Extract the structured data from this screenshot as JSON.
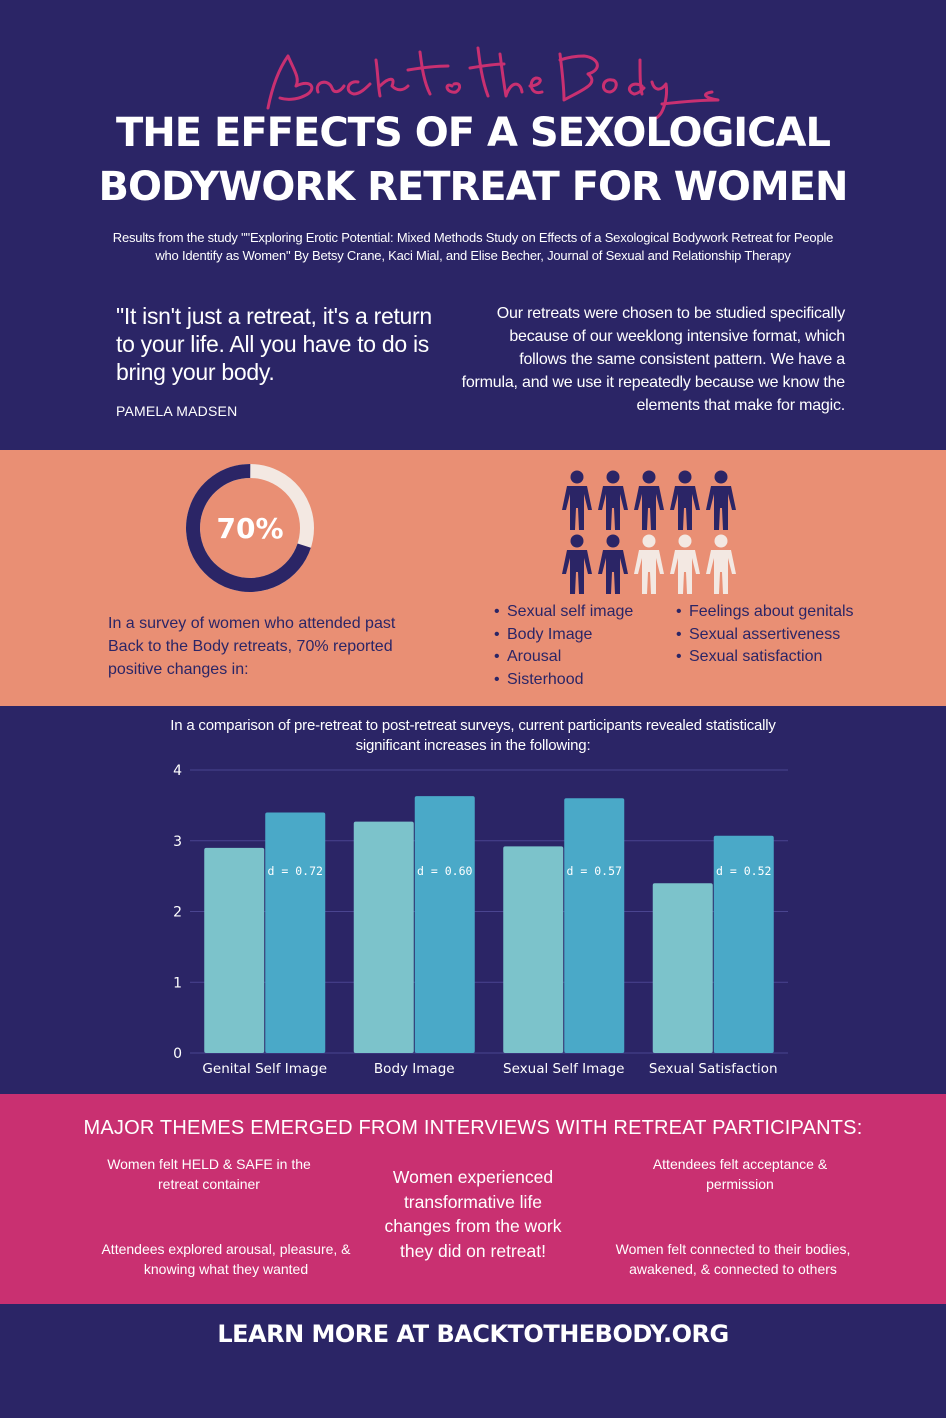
{
  "header": {
    "brand_script": "Back to the Body",
    "title_line1": "THE EFFECTS OF A SEXOLOGICAL",
    "title_line2": "BODYWORK RETREAT FOR WOMEN",
    "subtitle_line1": "Results from the study \"\"Exploring Erotic Potential: Mixed Methods Study on Effects of a Sexological Bodywork Retreat for People",
    "subtitle_line2": "who Identify as Women\" By Betsy Crane, Kaci Mial, and Elise Becher, Journal of Sexual and Relationship Therapy"
  },
  "quote": {
    "text": "\"It isn't just a retreat, it's a return to your life. All you have to do is bring your body.",
    "author": "PAMELA MADSEN"
  },
  "intro": {
    "text": "Our retreats were chosen to be studied specifically because of our weeklong intensive format, which follows the same consistent pattern. We have a formula, and we use it repeatedly because we know the elements that make for magic."
  },
  "survey": {
    "percent_label": "70%",
    "percent_value": 70,
    "people_total": 10,
    "people_highlighted": 7,
    "description": "In a survey of women who attended past Back to the Body retreats, 70% reported positive changes in:",
    "bullets_left": [
      "Sexual self image",
      "Body Image",
      "Arousal",
      "Sisterhood"
    ],
    "bullets_right": [
      "Feelings about genitals",
      "Sexual assertiveness",
      "Sexual satisfaction"
    ]
  },
  "chart_caption": "In a comparison of pre-retreat to post-retreat surveys, current participants revealed statistically significant increases in the following:",
  "chart_data": {
    "type": "bar",
    "categories": [
      "Genital Self Image",
      "Body Image",
      "Sexual Self Image",
      "Sexual Satisfaction"
    ],
    "series": [
      {
        "values": [
          2.9,
          3.27,
          2.92,
          2.4
        ]
      },
      {
        "values": [
          3.4,
          3.63,
          3.6,
          3.07
        ]
      }
    ],
    "annotations": [
      "d = 0.72",
      "d = 0.60",
      "d = 0.57",
      "d = 0.52"
    ],
    "ylim": [
      0,
      4
    ],
    "yticks": [
      0,
      1,
      2,
      3,
      4
    ],
    "grid": true,
    "colors": [
      "#7cc3cb",
      "#4aa9c8"
    ]
  },
  "themes": {
    "heading": "MAJOR THEMES EMERGED FROM INTERVIEWS WITH RETREAT PARTICIPANTS:",
    "top_left": "Women felt HELD & SAFE in the retreat container",
    "bottom_left": "Attendees explored arousal, pleasure, & knowing what they wanted",
    "center": "Women experienced transformative life changes from the work they did on retreat!",
    "top_right": "Attendees felt acceptance & permission",
    "bottom_right": "Women felt connected to their bodies, awakened, & connected to others"
  },
  "footer": {
    "cta": "LEARN MORE AT BACKTOTHEBODY.ORG"
  },
  "colors": {
    "navy": "#2b2566",
    "salmon": "#e98f74",
    "magenta": "#c93071",
    "bar_pre": "#7cc3cb",
    "bar_post": "#4aa9c8",
    "person_light": "#f3e8e2"
  }
}
